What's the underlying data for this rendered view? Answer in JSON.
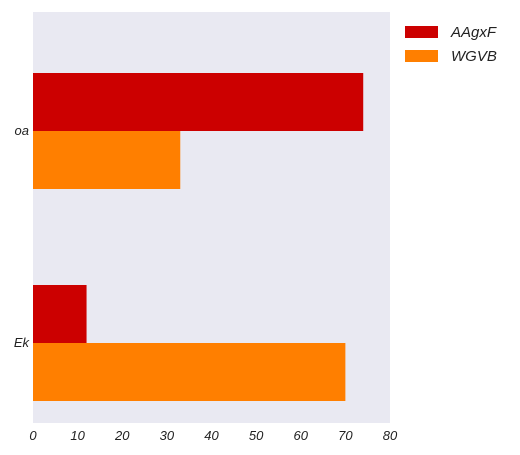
{
  "chart_data": {
    "type": "bar",
    "orientation": "horizontal",
    "categories": [
      "oa",
      "Ek"
    ],
    "series": [
      {
        "name": "AAgxF",
        "values": [
          74,
          12
        ],
        "color": "#cc0000"
      },
      {
        "name": "WGVB",
        "values": [
          33,
          70
        ],
        "color": "#ff7f00"
      }
    ],
    "xlim": [
      0,
      80
    ],
    "xticks": [
      0,
      10,
      20,
      30,
      40,
      50,
      60,
      70,
      80
    ],
    "title": "",
    "xlabel": "",
    "ylabel": "",
    "grid": false,
    "legend_position": "outside-top-right",
    "plot_background": "#e9e9f2"
  }
}
